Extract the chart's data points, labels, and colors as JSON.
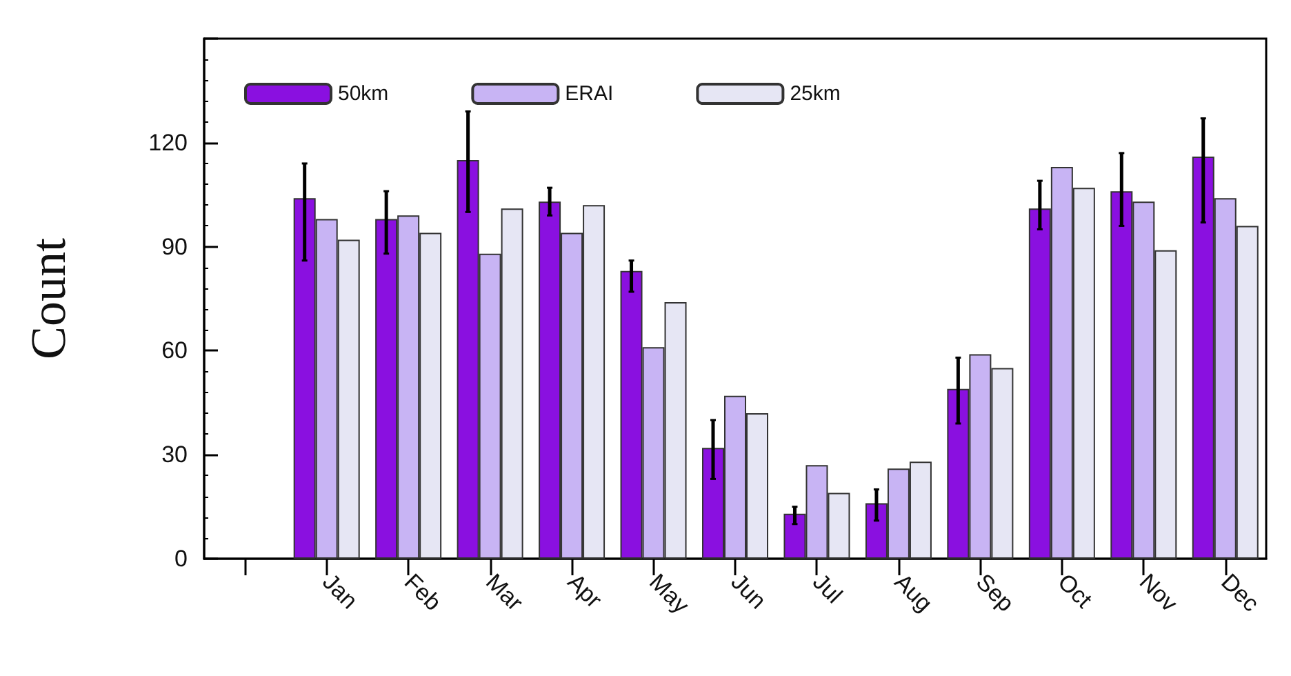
{
  "chart_data": {
    "type": "bar",
    "ylabel": "Count",
    "categories": [
      null,
      "Jan",
      "Feb",
      "Mar",
      "Apr",
      "May",
      "Jun",
      "Jul",
      "Aug",
      "Sep",
      "Oct",
      "Nov",
      "Dec"
    ],
    "series": [
      {
        "name": "50km",
        "color": "#8a10e0",
        "values": [
          null,
          104,
          98,
          115,
          103,
          83,
          32,
          13,
          16,
          49,
          101,
          106,
          116
        ],
        "errors": [
          null,
          [
            86,
            114
          ],
          [
            88,
            106
          ],
          [
            100,
            129
          ],
          [
            99,
            107
          ],
          [
            77,
            86
          ],
          [
            23,
            40
          ],
          [
            10,
            15
          ],
          [
            11,
            20
          ],
          [
            39,
            58
          ],
          [
            95,
            109
          ],
          [
            96,
            117
          ],
          [
            97,
            127
          ]
        ]
      },
      {
        "name": "ERAI",
        "color": "#c8b4f4",
        "values": [
          null,
          98,
          99,
          88,
          94,
          61,
          47,
          27,
          26,
          59,
          113,
          103,
          104
        ]
      },
      {
        "name": "25km",
        "color": "#e6e6f4",
        "values": [
          null,
          92,
          94,
          101,
          102,
          74,
          42,
          19,
          28,
          55,
          107,
          89,
          96
        ]
      }
    ],
    "ylim": [
      0,
      150
    ],
    "yticks": [
      0,
      30,
      60,
      90,
      120,
      {
        "value": 150,
        "label": null
      }
    ],
    "legend": "top left",
    "grid": false
  }
}
